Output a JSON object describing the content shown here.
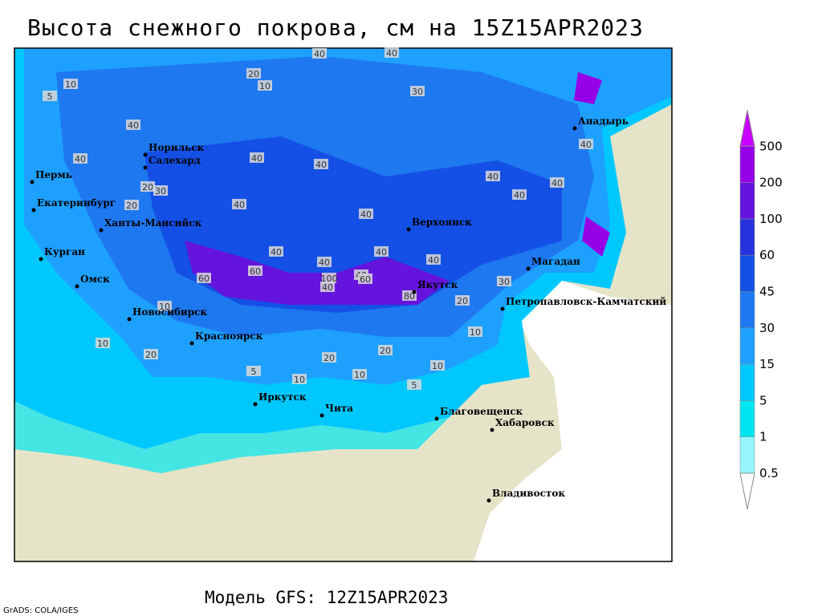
{
  "title": "Высота снежного покрова, см на 15Z15APR2023",
  "footer": "Модель GFS: 12Z15APR2023",
  "credit": "GrADS: COLA/IGES",
  "colorbar": {
    "levels": [
      0.5,
      1,
      5,
      15,
      30,
      45,
      60,
      100,
      200,
      500
    ],
    "colors": [
      "#96f5ff",
      "#00e6f0",
      "#00c8ff",
      "#1ea0ff",
      "#1e78f0",
      "#1450e6",
      "#2832dc",
      "#6414dc",
      "#9600e6"
    ],
    "top_color": "#c800ff"
  },
  "cities": [
    "Норильск",
    "Салехард",
    "Пермь",
    "Екатеринбург",
    "Ханты-Мансийск",
    "Курган",
    "Омск",
    "Новосибирск",
    "Красноярск",
    "Иркутск",
    "Чита",
    "Верхоянск",
    "Якутск",
    "Магадан",
    "Анадырь",
    "Петропавловск-Камчатский",
    "Благовещенск",
    "Хабаровск",
    "Владивосток"
  ],
  "contour_labels": [
    40,
    40,
    30,
    20,
    10,
    5,
    10,
    40,
    40,
    40,
    40,
    20,
    40,
    40,
    40,
    40,
    40,
    40,
    40,
    40,
    60,
    40,
    60,
    40,
    60,
    100,
    80,
    40,
    40,
    30,
    20,
    10,
    10,
    20,
    20,
    10,
    5,
    10,
    10,
    30,
    20,
    20,
    10,
    5
  ]
}
